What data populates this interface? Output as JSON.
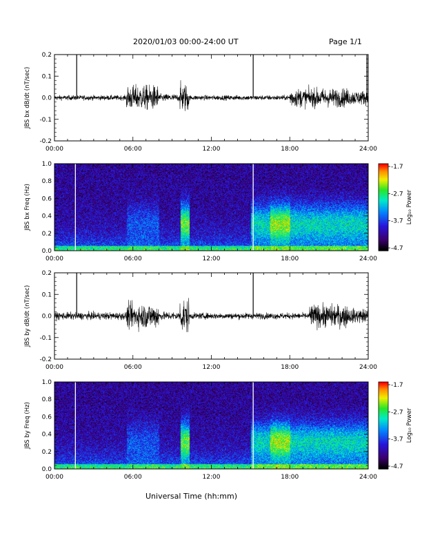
{
  "header": {
    "title": "2020/01/03  00:00-24:00 UT",
    "page": "Page 1/1"
  },
  "xaxis": {
    "ticks": [
      "00:00",
      "06:00",
      "12:00",
      "18:00",
      "24:00"
    ],
    "label": "Universal Time (hh:mm)"
  },
  "colorbar": {
    "ticks": [
      "-1.7",
      "-2.7",
      "-3.7",
      "-4.7"
    ],
    "label": "Log₁₀ Power"
  },
  "chart_data": [
    {
      "type": "line",
      "ylabel": "JBS bx dB/dt (nT/sec)",
      "xlim": [
        0,
        24
      ],
      "ylim": [
        -0.2,
        0.2
      ],
      "yticks": [
        "0.2",
        "0.1",
        "0.0",
        "-0.1",
        "-0.2"
      ],
      "spikes_hours": [
        1.7,
        15.2,
        23.9
      ],
      "activity": [
        {
          "start": 0.0,
          "end": 5.5,
          "amplitude": 0.012
        },
        {
          "start": 5.5,
          "end": 8.0,
          "amplitude": 0.06
        },
        {
          "start": 8.0,
          "end": 9.6,
          "amplitude": 0.018
        },
        {
          "start": 9.6,
          "end": 10.3,
          "amplitude": 0.07
        },
        {
          "start": 10.3,
          "end": 18.0,
          "amplitude": 0.012
        },
        {
          "start": 18.0,
          "end": 22.5,
          "amplitude": 0.045
        },
        {
          "start": 22.5,
          "end": 24.0,
          "amplitude": 0.035
        }
      ]
    },
    {
      "type": "heatmap",
      "ylabel": "JBS bx Freq (Hz)",
      "xlim": [
        0,
        24
      ],
      "ylim": [
        0,
        1.0
      ],
      "yticks": [
        "1.0",
        "0.8",
        "0.6",
        "0.4",
        "0.2",
        "0.0"
      ],
      "zlim": [
        -4.7,
        -1.7
      ],
      "white_lines_hours": [
        1.6,
        15.2
      ]
    },
    {
      "type": "line",
      "ylabel": "JBS by dB/dt (nT/sec)",
      "xlim": [
        0,
        24
      ],
      "ylim": [
        -0.2,
        0.2
      ],
      "yticks": [
        "0.2",
        "0.1",
        "0.0",
        "-0.1",
        "-0.2"
      ],
      "spikes_hours": [
        1.7,
        15.2
      ],
      "activity": [
        {
          "start": 0.0,
          "end": 5.5,
          "amplitude": 0.018
        },
        {
          "start": 5.5,
          "end": 8.0,
          "amplitude": 0.06
        },
        {
          "start": 8.0,
          "end": 9.6,
          "amplitude": 0.02
        },
        {
          "start": 9.6,
          "end": 10.3,
          "amplitude": 0.08
        },
        {
          "start": 10.3,
          "end": 19.5,
          "amplitude": 0.015
        },
        {
          "start": 19.5,
          "end": 22.5,
          "amplitude": 0.055
        },
        {
          "start": 22.5,
          "end": 24.0,
          "amplitude": 0.035
        }
      ]
    },
    {
      "type": "heatmap",
      "ylabel": "JBS by Freq (Hz)",
      "xlim": [
        0,
        24
      ],
      "ylim": [
        0,
        1.0
      ],
      "yticks": [
        "1.0",
        "0.8",
        "0.6",
        "0.4",
        "0.2",
        "0.0"
      ],
      "zlim": [
        -4.7,
        -1.7
      ],
      "white_lines_hours": [
        1.6,
        15.2
      ]
    }
  ]
}
